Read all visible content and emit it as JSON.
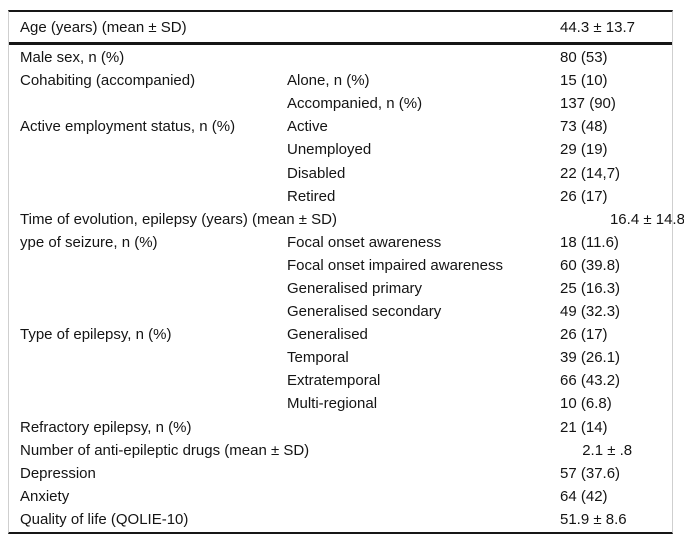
{
  "table": {
    "header_row": {
      "label": "Age (years) (mean ± SD)",
      "value": "44.3 ± 13.7"
    },
    "rows": [
      {
        "label": "Male sex, n (%)",
        "sub": "",
        "value": "80 (53)"
      },
      {
        "label": "Cohabiting (accompanied)",
        "sub": "Alone, n (%)",
        "value": "15 (10)"
      },
      {
        "label": "",
        "sub": "Accompanied, n (%)",
        "value": "137 (90)"
      },
      {
        "label": "Active employment status, n (%)",
        "sub": "Active",
        "value": "73 (48)"
      },
      {
        "label": "",
        "sub": "Unemployed",
        "value": "29 (19)"
      },
      {
        "label": "",
        "sub": "Disabled",
        "value": "22 (14,7)"
      },
      {
        "label": "",
        "sub": "Retired",
        "value": "26 (17)"
      },
      {
        "label": "Time of evolution, epilepsy (years) (mean ± SD)",
        "sub": "",
        "value": "16.4 ± 14.8"
      },
      {
        "label": "ype of seizure, n (%)",
        "sub": "Focal onset awareness",
        "value": "18 (11.6)"
      },
      {
        "label": "",
        "sub": "Focal onset impaired awareness",
        "value": "60 (39.8)"
      },
      {
        "label": "",
        "sub": "Generalised primary",
        "value": "25 (16.3)"
      },
      {
        "label": "",
        "sub": "Generalised secondary",
        "value": "49 (32.3)"
      },
      {
        "label": "Type of epilepsy, n (%)",
        "sub": "Generalised",
        "value": "26 (17)"
      },
      {
        "label": "",
        "sub": "Temporal",
        "value": "39 (26.1)"
      },
      {
        "label": "",
        "sub": "Extratemporal",
        "value": "66 (43.2)"
      },
      {
        "label": "",
        "sub": "Multi-regional",
        "value": "10 (6.8)"
      },
      {
        "label": "Refractory epilepsy, n (%)",
        "sub": "",
        "value": "21 (14)"
      },
      {
        "label": "Number of anti-epileptic drugs (mean ± SD)",
        "sub": "",
        "value": "2.1 ± .8"
      },
      {
        "label": "Depression",
        "sub": "",
        "value": "57 (37.6)"
      },
      {
        "label": "Anxiety",
        "sub": "",
        "value": "64 (42)"
      },
      {
        "label": "Quality of life (QOLIE-10)",
        "sub": "",
        "value": "51.9 ± 8.6"
      }
    ],
    "colors": {
      "rule_dark": "#161616",
      "rule_light": "#cfcfcf",
      "text": "#141414",
      "background": "#ffffff"
    }
  }
}
